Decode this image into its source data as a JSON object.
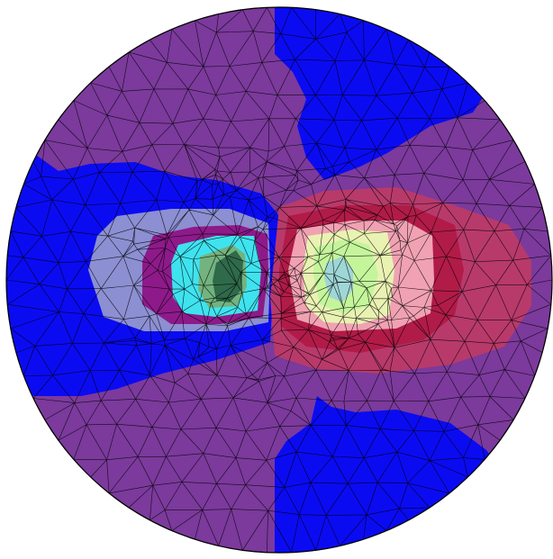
{
  "figure": {
    "kind": "finite-element contour plot on a circular triangular mesh",
    "background_color": "#ffffff",
    "outline_color": "#000000",
    "mesh_line_color": "#000000"
  },
  "palette": {
    "background_region": "#7b3a9c",
    "low_region": "#0b0bf2",
    "pale_blue": "#8c8fd1",
    "magenta": "#8e1a8a",
    "cyan": "#3fe3ef",
    "dark_green": "#2f6a4a",
    "mid_green": "#73b37f",
    "deep_red": "#b11b48",
    "rose": "#b83a6a",
    "light_pink": "#f0a2b3",
    "light_yellow": "#e9f2b2",
    "light_green": "#c4f59b",
    "light_blue": "#9fd6d6"
  }
}
